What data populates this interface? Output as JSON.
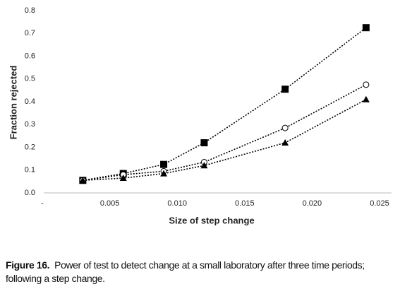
{
  "chart_data": {
    "type": "line",
    "xlabel": "Size of step change",
    "ylabel": "Fraction rejected",
    "caption_label": "Figure 16.",
    "caption": "Power of test to detect change at a small laboratory after three time periods; following a step change.",
    "x": [
      0.003,
      0.006,
      0.009,
      0.012,
      0.018,
      0.024
    ],
    "series": [
      {
        "color": "#000000",
        "marker": "square",
        "values": [
          0.055,
          0.085,
          0.125,
          0.22,
          0.455,
          0.725
        ]
      },
      {
        "color": "#000000",
        "marker": "circle",
        "values": [
          0.055,
          0.08,
          0.095,
          0.135,
          0.285,
          0.475
        ]
      },
      {
        "color": "#000000",
        "marker": "triangle",
        "values": [
          0.055,
          0.065,
          0.085,
          0.12,
          0.22,
          0.41
        ]
      }
    ],
    "xlim": [
      0,
      0.025
    ],
    "xticks": [
      {
        "value": 0,
        "label": "-"
      },
      0.005,
      {
        "value": 0.01,
        "label": "0.010"
      },
      0.015,
      {
        "value": 0.02,
        "label": "0.020"
      },
      0.025
    ],
    "ylim": [
      0,
      0.8
    ],
    "yticks": [
      {
        "value": 0,
        "label": "0.0"
      },
      0.1,
      0.2,
      0.3,
      0.4,
      0.5,
      0.6,
      0.7,
      0.8
    ],
    "grid": false
  }
}
